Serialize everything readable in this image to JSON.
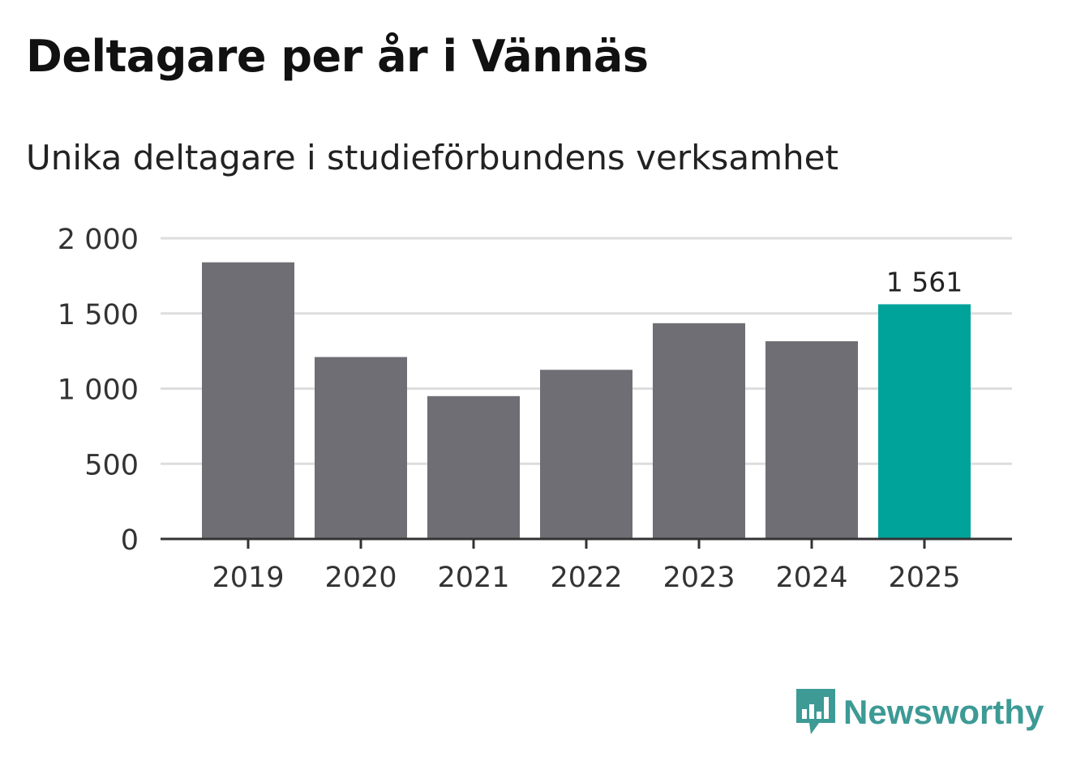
{
  "colors": {
    "bar": "#6f6e74",
    "highlight": "#00a39a",
    "grid": "#dddddd",
    "axis": "#333333",
    "text": "#333333",
    "brand": "#3d9a95"
  },
  "brand": {
    "name": "Newsworthy",
    "icon": "newsworthy-logo-icon"
  },
  "chart_data": {
    "type": "bar",
    "title": "Deltagare per år i Vännäs",
    "subtitle": "Unika deltagare i studieförbundens verksamhet",
    "xlabel": "",
    "ylabel": "",
    "categories": [
      "2019",
      "2020",
      "2021",
      "2022",
      "2023",
      "2024",
      "2025"
    ],
    "values": [
      1840,
      1210,
      950,
      1125,
      1435,
      1315,
      1561
    ],
    "highlight_index": 6,
    "data_labels": [
      {
        "index": 6,
        "text": "1 561"
      }
    ],
    "ylim": [
      0,
      2000
    ],
    "yticks": [
      {
        "value": 0,
        "label": "0"
      },
      {
        "value": 500,
        "label": "500"
      },
      {
        "value": 1000,
        "label": "1 000"
      },
      {
        "value": 1500,
        "label": "1 500"
      },
      {
        "value": 2000,
        "label": "2 000"
      }
    ],
    "grid": true,
    "legend": "none"
  }
}
